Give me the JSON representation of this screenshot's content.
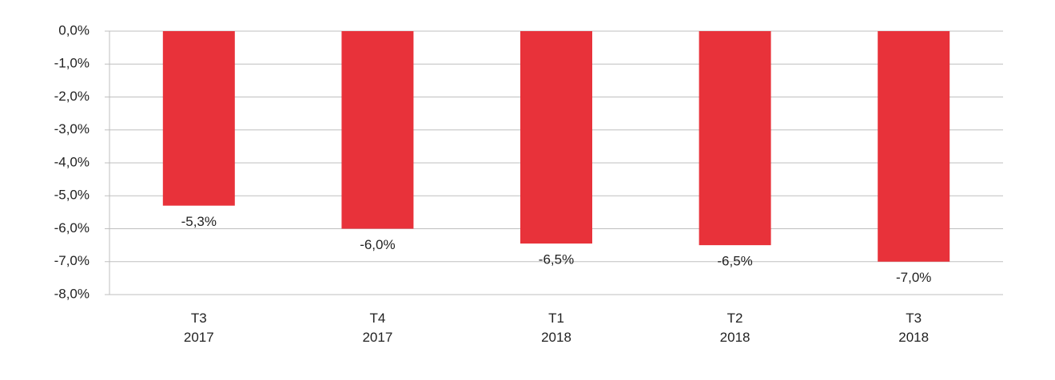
{
  "chart_data": {
    "type": "bar",
    "categories": [
      "T3\n2017",
      "T4\n2017",
      "T1\n2018",
      "T2\n2018",
      "T3\n2018"
    ],
    "values": [
      -5.3,
      -6.0,
      -6.45,
      -6.5,
      -7.0
    ],
    "value_labels": [
      "-5,3%",
      "-6,0%",
      "-6,5%",
      "-6,5%",
      "-7,0%"
    ],
    "color": "#e8323a",
    "ylim": [
      -8,
      0
    ],
    "yticks": [
      {
        "value": 0,
        "label": "0,0%"
      },
      {
        "value": -1,
        "label": "-1,0%"
      },
      {
        "value": -2,
        "label": "-2,0%"
      },
      {
        "value": -3,
        "label": "-3,0%"
      },
      {
        "value": -4,
        "label": "-4,0%"
      },
      {
        "value": -5,
        "label": "-5,0%"
      },
      {
        "value": -6,
        "label": "-6,0%"
      },
      {
        "value": -7,
        "label": "-7,0%"
      },
      {
        "value": -8,
        "label": "-8,0%"
      }
    ],
    "grid": true
  }
}
